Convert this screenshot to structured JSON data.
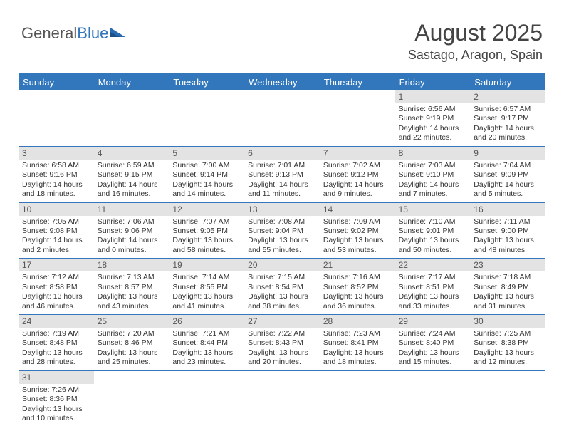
{
  "brand": {
    "part1": "General",
    "part2": "Blue"
  },
  "title": "August 2025",
  "location": "Sastago, Aragon, Spain",
  "colors": {
    "accent": "#3277bc",
    "header_bg": "#e3e3e3",
    "text": "#333333",
    "title_text": "#444444"
  },
  "dow": [
    "Sunday",
    "Monday",
    "Tuesday",
    "Wednesday",
    "Thursday",
    "Friday",
    "Saturday"
  ],
  "weeks": [
    [
      null,
      null,
      null,
      null,
      null,
      {
        "n": "1",
        "sr": "Sunrise: 6:56 AM",
        "ss": "Sunset: 9:19 PM",
        "dl": "Daylight: 14 hours and 22 minutes."
      },
      {
        "n": "2",
        "sr": "Sunrise: 6:57 AM",
        "ss": "Sunset: 9:17 PM",
        "dl": "Daylight: 14 hours and 20 minutes."
      }
    ],
    [
      {
        "n": "3",
        "sr": "Sunrise: 6:58 AM",
        "ss": "Sunset: 9:16 PM",
        "dl": "Daylight: 14 hours and 18 minutes."
      },
      {
        "n": "4",
        "sr": "Sunrise: 6:59 AM",
        "ss": "Sunset: 9:15 PM",
        "dl": "Daylight: 14 hours and 16 minutes."
      },
      {
        "n": "5",
        "sr": "Sunrise: 7:00 AM",
        "ss": "Sunset: 9:14 PM",
        "dl": "Daylight: 14 hours and 14 minutes."
      },
      {
        "n": "6",
        "sr": "Sunrise: 7:01 AM",
        "ss": "Sunset: 9:13 PM",
        "dl": "Daylight: 14 hours and 11 minutes."
      },
      {
        "n": "7",
        "sr": "Sunrise: 7:02 AM",
        "ss": "Sunset: 9:12 PM",
        "dl": "Daylight: 14 hours and 9 minutes."
      },
      {
        "n": "8",
        "sr": "Sunrise: 7:03 AM",
        "ss": "Sunset: 9:10 PM",
        "dl": "Daylight: 14 hours and 7 minutes."
      },
      {
        "n": "9",
        "sr": "Sunrise: 7:04 AM",
        "ss": "Sunset: 9:09 PM",
        "dl": "Daylight: 14 hours and 5 minutes."
      }
    ],
    [
      {
        "n": "10",
        "sr": "Sunrise: 7:05 AM",
        "ss": "Sunset: 9:08 PM",
        "dl": "Daylight: 14 hours and 2 minutes."
      },
      {
        "n": "11",
        "sr": "Sunrise: 7:06 AM",
        "ss": "Sunset: 9:06 PM",
        "dl": "Daylight: 14 hours and 0 minutes."
      },
      {
        "n": "12",
        "sr": "Sunrise: 7:07 AM",
        "ss": "Sunset: 9:05 PM",
        "dl": "Daylight: 13 hours and 58 minutes."
      },
      {
        "n": "13",
        "sr": "Sunrise: 7:08 AM",
        "ss": "Sunset: 9:04 PM",
        "dl": "Daylight: 13 hours and 55 minutes."
      },
      {
        "n": "14",
        "sr": "Sunrise: 7:09 AM",
        "ss": "Sunset: 9:02 PM",
        "dl": "Daylight: 13 hours and 53 minutes."
      },
      {
        "n": "15",
        "sr": "Sunrise: 7:10 AM",
        "ss": "Sunset: 9:01 PM",
        "dl": "Daylight: 13 hours and 50 minutes."
      },
      {
        "n": "16",
        "sr": "Sunrise: 7:11 AM",
        "ss": "Sunset: 9:00 PM",
        "dl": "Daylight: 13 hours and 48 minutes."
      }
    ],
    [
      {
        "n": "17",
        "sr": "Sunrise: 7:12 AM",
        "ss": "Sunset: 8:58 PM",
        "dl": "Daylight: 13 hours and 46 minutes."
      },
      {
        "n": "18",
        "sr": "Sunrise: 7:13 AM",
        "ss": "Sunset: 8:57 PM",
        "dl": "Daylight: 13 hours and 43 minutes."
      },
      {
        "n": "19",
        "sr": "Sunrise: 7:14 AM",
        "ss": "Sunset: 8:55 PM",
        "dl": "Daylight: 13 hours and 41 minutes."
      },
      {
        "n": "20",
        "sr": "Sunrise: 7:15 AM",
        "ss": "Sunset: 8:54 PM",
        "dl": "Daylight: 13 hours and 38 minutes."
      },
      {
        "n": "21",
        "sr": "Sunrise: 7:16 AM",
        "ss": "Sunset: 8:52 PM",
        "dl": "Daylight: 13 hours and 36 minutes."
      },
      {
        "n": "22",
        "sr": "Sunrise: 7:17 AM",
        "ss": "Sunset: 8:51 PM",
        "dl": "Daylight: 13 hours and 33 minutes."
      },
      {
        "n": "23",
        "sr": "Sunrise: 7:18 AM",
        "ss": "Sunset: 8:49 PM",
        "dl": "Daylight: 13 hours and 31 minutes."
      }
    ],
    [
      {
        "n": "24",
        "sr": "Sunrise: 7:19 AM",
        "ss": "Sunset: 8:48 PM",
        "dl": "Daylight: 13 hours and 28 minutes."
      },
      {
        "n": "25",
        "sr": "Sunrise: 7:20 AM",
        "ss": "Sunset: 8:46 PM",
        "dl": "Daylight: 13 hours and 25 minutes."
      },
      {
        "n": "26",
        "sr": "Sunrise: 7:21 AM",
        "ss": "Sunset: 8:44 PM",
        "dl": "Daylight: 13 hours and 23 minutes."
      },
      {
        "n": "27",
        "sr": "Sunrise: 7:22 AM",
        "ss": "Sunset: 8:43 PM",
        "dl": "Daylight: 13 hours and 20 minutes."
      },
      {
        "n": "28",
        "sr": "Sunrise: 7:23 AM",
        "ss": "Sunset: 8:41 PM",
        "dl": "Daylight: 13 hours and 18 minutes."
      },
      {
        "n": "29",
        "sr": "Sunrise: 7:24 AM",
        "ss": "Sunset: 8:40 PM",
        "dl": "Daylight: 13 hours and 15 minutes."
      },
      {
        "n": "30",
        "sr": "Sunrise: 7:25 AM",
        "ss": "Sunset: 8:38 PM",
        "dl": "Daylight: 13 hours and 12 minutes."
      }
    ],
    [
      {
        "n": "31",
        "sr": "Sunrise: 7:26 AM",
        "ss": "Sunset: 8:36 PM",
        "dl": "Daylight: 13 hours and 10 minutes."
      },
      null,
      null,
      null,
      null,
      null,
      null
    ]
  ]
}
